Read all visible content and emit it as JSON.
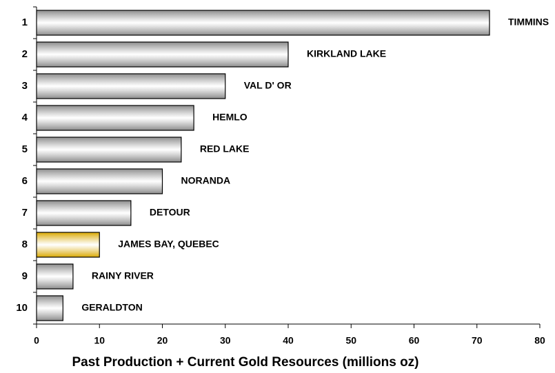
{
  "chart_data": {
    "type": "hbar",
    "x_label": "Past Production + Current Gold Resources (millions oz)",
    "categories": [
      "1",
      "2",
      "3",
      "4",
      "5",
      "6",
      "7",
      "8",
      "9",
      "10"
    ],
    "labels": [
      "TIMMINS",
      "KIRKLAND LAKE",
      "VAL D' OR",
      "HEMLO",
      "RED LAKE",
      "NORANDA",
      "DETOUR",
      "JAMES BAY, QUEBEC",
      "RAINY RIVER",
      "GERALDTON"
    ],
    "values": [
      72,
      40,
      30,
      25,
      23,
      20,
      15,
      10,
      5.8,
      4.2
    ],
    "colors": [
      "#8c8c8c",
      "#8c8c8c",
      "#8c8c8c",
      "#8c8c8c",
      "#8c8c8c",
      "#8c8c8c",
      "#8c8c8c",
      "#d9a800",
      "#8c8c8c",
      "#8c8c8c"
    ],
    "xlim": [
      0,
      80
    ],
    "xticks": [
      0,
      10,
      20,
      30,
      40,
      50,
      60,
      70,
      80
    ]
  }
}
